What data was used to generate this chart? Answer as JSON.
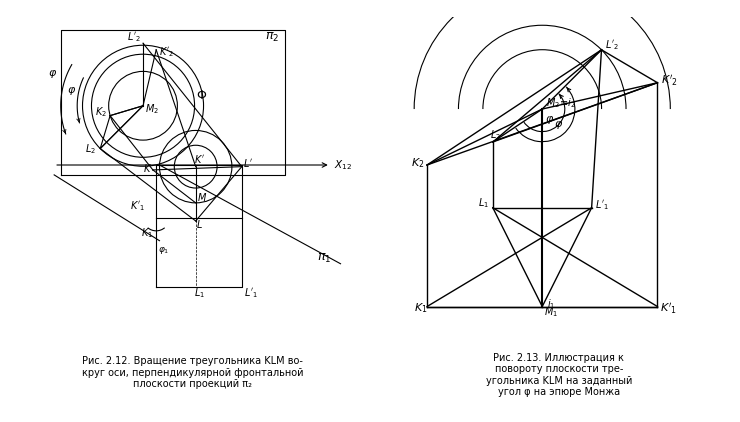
{
  "fig_width": 7.4,
  "fig_height": 4.22,
  "dpi": 100,
  "bg_color": "#ffffff",
  "line_color": "#000000",
  "caption1": "Рис. 2.12. Вращение треугольника KLM во-\nкруг оси, перпендикулярной фронтальной\nплоскости проекций π₂",
  "caption2": "Рис. 2.13. Иллюстрация к\nповороту плоскости тре-\nугольника KLM на заданный\nугол φ на эпюре Монжа"
}
